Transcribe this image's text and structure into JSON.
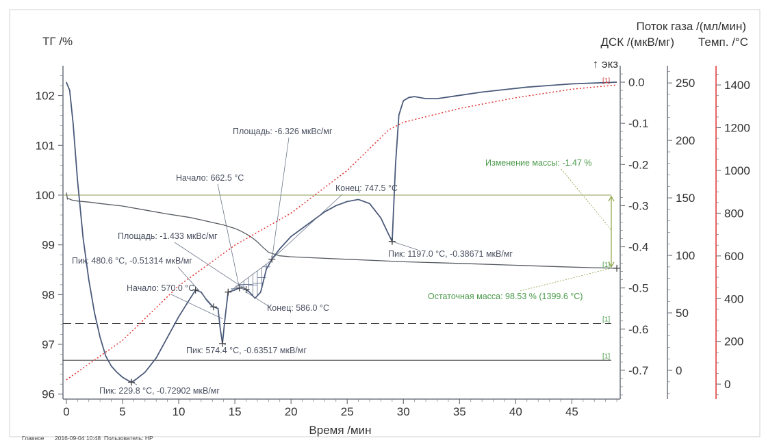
{
  "chart_data": {
    "type": "line",
    "xlabel": "Время /мин",
    "x_ticks": [
      "0",
      "5",
      "10",
      "15",
      "20",
      "25",
      "30",
      "35",
      "40",
      "45"
    ],
    "xlim": [
      -0.3,
      49.3
    ],
    "axes": {
      "tg": {
        "title": "ТГ /%",
        "ticks": [
          "96",
          "97",
          "98",
          "99",
          "100",
          "101",
          "102"
        ],
        "ylim": [
          95.9,
          102.6
        ]
      },
      "dsc": {
        "title": "ДСК /(мкВ/мг)",
        "exo": "↑ экз",
        "ticks": [
          "0.0",
          "-0.1",
          "-0.2",
          "-0.3",
          "-0.4",
          "-0.5",
          "-0.6",
          "-0.7"
        ],
        "ylim": [
          -0.77,
          0.04
        ]
      },
      "flow": {
        "title": "Поток газа /(мл/мин)",
        "ticks": [
          "0",
          "50",
          "100",
          "150",
          "200",
          "250"
        ],
        "ylim": [
          -25,
          265
        ]
      },
      "temp": {
        "title": "Темп. /°C",
        "ticks": [
          "0",
          "200",
          "400",
          "600",
          "800",
          "1000",
          "1200",
          "1400"
        ],
        "ylim": [
          -70,
          1490
        ]
      }
    },
    "series": [
      {
        "axis": "dsc",
        "x": [
          0,
          0.3,
          0.6,
          1,
          1.5,
          2,
          2.5,
          3,
          3.5,
          4,
          4.5,
          5,
          5.5,
          5.8,
          6.2,
          7,
          8,
          9,
          10,
          10.8,
          11.5,
          12,
          12.5,
          13,
          13.5,
          13.7,
          13.9,
          14.1,
          14.4,
          15,
          15.4,
          15.8,
          16.3,
          16.8,
          17.3,
          17.8,
          18.3,
          19,
          20,
          21,
          22,
          23,
          24,
          25,
          26,
          27,
          28,
          28.6,
          29,
          29.3,
          29.6,
          30,
          30.5,
          31,
          32,
          33,
          35,
          37,
          39,
          41,
          43,
          45,
          47,
          49
        ],
        "y": [
          0.0,
          -0.02,
          -0.1,
          -0.24,
          -0.38,
          -0.48,
          -0.56,
          -0.62,
          -0.665,
          -0.69,
          -0.705,
          -0.717,
          -0.725,
          -0.729,
          -0.722,
          -0.705,
          -0.67,
          -0.62,
          -0.57,
          -0.535,
          -0.505,
          -0.51,
          -0.53,
          -0.545,
          -0.55,
          -0.6,
          -0.635,
          -0.58,
          -0.51,
          -0.505,
          -0.5,
          -0.5,
          -0.51,
          -0.525,
          -0.51,
          -0.455,
          -0.43,
          -0.405,
          -0.375,
          -0.355,
          -0.335,
          -0.315,
          -0.3,
          -0.29,
          -0.285,
          -0.295,
          -0.33,
          -0.365,
          -0.387,
          -0.2,
          -0.08,
          -0.045,
          -0.037,
          -0.035,
          -0.04,
          -0.04,
          -0.032,
          -0.024,
          -0.018,
          -0.012,
          -0.008,
          -0.004,
          -0.002,
          0.0
        ]
      },
      {
        "axis": "tg",
        "x": [
          0,
          0.1,
          0.2,
          0.5,
          1,
          2,
          3,
          5,
          7,
          9,
          11,
          12,
          13,
          14,
          15,
          15.5,
          16,
          16.5,
          17,
          17.5,
          18,
          19,
          20,
          22,
          25,
          28,
          30,
          33,
          36,
          40,
          44,
          47,
          49
        ],
        "y": [
          100.05,
          99.92,
          99.93,
          99.9,
          99.88,
          99.86,
          99.83,
          99.78,
          99.7,
          99.62,
          99.55,
          99.5,
          99.45,
          99.4,
          99.33,
          99.28,
          99.22,
          99.15,
          99.06,
          98.95,
          98.85,
          98.78,
          98.76,
          98.74,
          98.71,
          98.68,
          98.66,
          98.64,
          98.62,
          98.59,
          98.56,
          98.54,
          98.53
        ]
      },
      {
        "axis": "temp",
        "x": [
          0,
          5,
          10,
          15,
          20,
          25,
          28.7,
          30,
          35,
          40,
          45,
          49
        ],
        "y": [
          20,
          205,
          460,
          650,
          800,
          1000,
          1190,
          1225,
          1290,
          1340,
          1380,
          1400
        ]
      }
    ],
    "reference_lines": [
      {
        "kind": "tg-initial",
        "axis": "tg",
        "value": 100.0,
        "tag": ""
      },
      {
        "kind": "dashed",
        "axis": "tg",
        "value": 97.42,
        "tag": "[1]"
      },
      {
        "kind": "solid",
        "axis": "tg",
        "value": 96.68,
        "tag": "[1]"
      }
    ],
    "curve_tags": {
      "dsc_end": "[1]",
      "tg_end": "[1]"
    },
    "annotations": [
      {
        "text": "Площадь: -6.326 мкВс/мг",
        "color": "default"
      },
      {
        "text": "Начало: 662.5 °C",
        "color": "default"
      },
      {
        "text": "Конец: 747.5 °C",
        "color": "default"
      },
      {
        "text": "Площадь: -1.433 мкВс/мг",
        "color": "default"
      },
      {
        "text": "Пик: 480.6 °C, -0.51314 мкВ/мг",
        "color": "default"
      },
      {
        "text": "Начало: 570.0 °C",
        "color": "default"
      },
      {
        "text": "Конец: 586.0 °C",
        "color": "default"
      },
      {
        "text": "Пик: 574.4 °C, -0.63517 мкВ/мг",
        "color": "default"
      },
      {
        "text": "Пик: 229.8 °C, -0.72902 мкВ/мг",
        "color": "default"
      },
      {
        "text": "Пик: 1197.0 °C, -0.38671 мкВ/мг",
        "color": "default"
      },
      {
        "text": "Изменение массы: -1.47 %",
        "color": "green"
      },
      {
        "text": "Остаточная масса: 98.53 % (1399.6 °C)",
        "color": "green"
      }
    ]
  },
  "footer": {
    "label": "Главное",
    "timestamp": "2016-09-04 10:48",
    "user": "Пользователь: HP"
  }
}
